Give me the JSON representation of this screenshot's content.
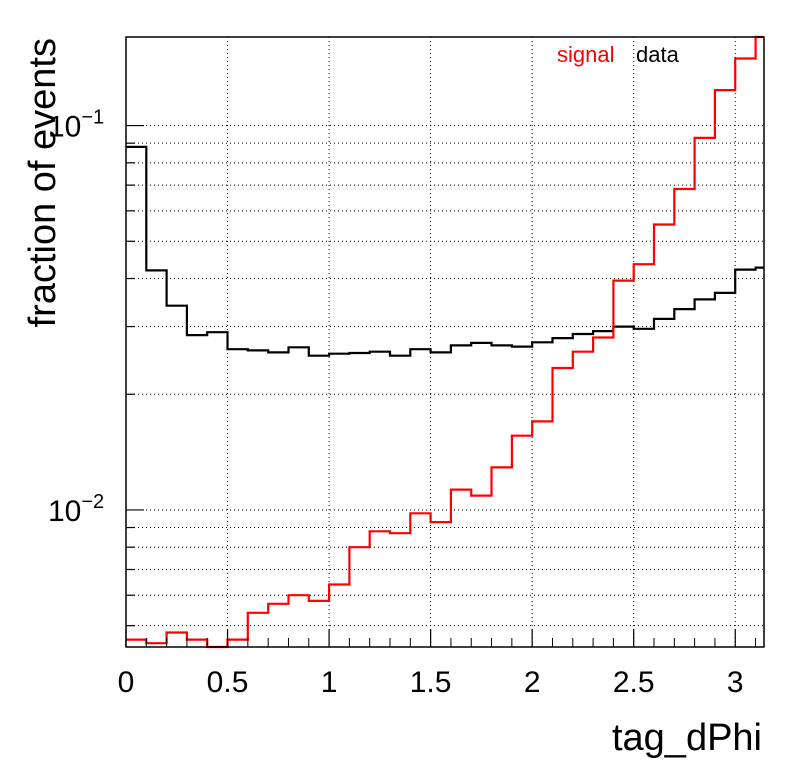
{
  "chart_data": {
    "type": "histogram-step",
    "xlabel": "tag_dPhi",
    "ylabel": "fraction of events",
    "xlim": [
      0,
      3.1416
    ],
    "ylim": [
      0.0044,
      0.17
    ],
    "yscale": "log",
    "grid": true,
    "legend_position": "top-right",
    "x_ticks": [
      {
        "value": 0,
        "label": "0"
      },
      {
        "value": 0.5,
        "label": "0.5"
      },
      {
        "value": 1,
        "label": "1"
      },
      {
        "value": 1.5,
        "label": "1.5"
      },
      {
        "value": 2,
        "label": "2"
      },
      {
        "value": 2.5,
        "label": "2.5"
      },
      {
        "value": 3,
        "label": "3"
      }
    ],
    "y_major_ticks": [
      {
        "value": 0.01,
        "label_base": "10",
        "label_exp": "−2"
      },
      {
        "value": 0.1,
        "label_base": "10",
        "label_exp": "−1"
      }
    ],
    "bin_edges": [
      0,
      0.1,
      0.2,
      0.3,
      0.4,
      0.5,
      0.6,
      0.7,
      0.8,
      0.9,
      1.0,
      1.1,
      1.2,
      1.3,
      1.4,
      1.5,
      1.6,
      1.7,
      1.8,
      1.9,
      2.0,
      2.1,
      2.2,
      2.3,
      2.4,
      2.5,
      2.6,
      2.7,
      2.8,
      2.9,
      3.0,
      3.1,
      3.1416
    ],
    "series": [
      {
        "name": "data",
        "color": "#000000",
        "values": [
          0.088,
          0.042,
          0.034,
          0.0285,
          0.029,
          0.0262,
          0.026,
          0.0257,
          0.0265,
          0.0252,
          0.0255,
          0.0256,
          0.0258,
          0.0252,
          0.0262,
          0.0257,
          0.0268,
          0.0272,
          0.0268,
          0.0266,
          0.0273,
          0.028,
          0.0287,
          0.0292,
          0.03,
          0.0296,
          0.0314,
          0.0333,
          0.0353,
          0.0367,
          0.0422,
          0.0427
        ]
      },
      {
        "name": "signal",
        "color": "#ff0000",
        "values": [
          0.0046,
          0.0045,
          0.0048,
          0.0046,
          0.0043,
          0.0046,
          0.0054,
          0.0057,
          0.006,
          0.0058,
          0.0064,
          0.008,
          0.0088,
          0.0087,
          0.0098,
          0.0093,
          0.0113,
          0.0109,
          0.0129,
          0.0156,
          0.017,
          0.0234,
          0.0258,
          0.0281,
          0.0395,
          0.0436,
          0.0553,
          0.0684,
          0.0929,
          0.1237,
          0.1495,
          0.17
        ]
      }
    ]
  }
}
